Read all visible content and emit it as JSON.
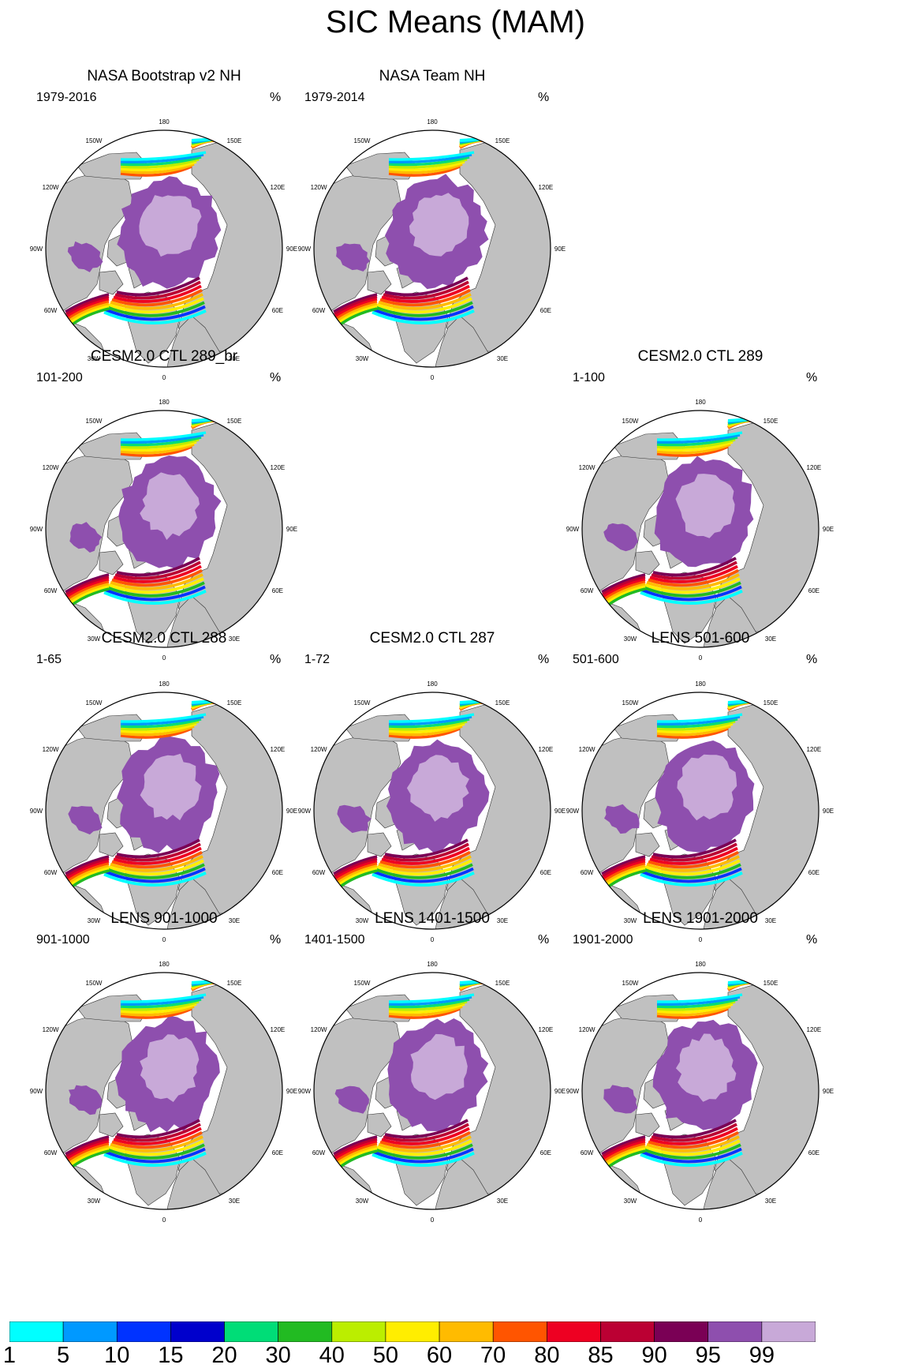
{
  "title": "SIC Means (MAM)",
  "colors": {
    "land": "#c0c0c0",
    "ocean": "#ffffff",
    "coast": "#333333"
  },
  "map_labels": {
    "lon_180": "180",
    "lon_150w": "150W",
    "lon_150e": "150E",
    "lon_120w": "120W",
    "lon_120e": "120E",
    "lon_90w": "90W",
    "lon_90e": "90E",
    "lon_60w": "60W",
    "lon_60e": "60E",
    "lon_30w": "30W",
    "lon_30e": "30E",
    "lon_0": "0"
  },
  "panels": [
    {
      "id": "bootstrap",
      "title": "NASA Bootstrap v2 NH",
      "left": "1979-2016",
      "right": "%",
      "visible": true
    },
    {
      "id": "nasateam",
      "title": "NASA Team NH",
      "left": "1979-2014",
      "right": "%",
      "visible": true
    },
    {
      "id": "empty",
      "visible": false
    },
    {
      "id": "ctl289br",
      "title": "CESM2.0 CTL 289_br",
      "left": "101-200",
      "right": "%",
      "visible": true
    },
    {
      "id": "empty2",
      "visible": false
    },
    {
      "id": "ctl289",
      "title": "CESM2.0 CTL 289",
      "left": "1-100",
      "right": "%",
      "visible": true
    },
    {
      "id": "ctl288",
      "title": "CESM2.0 CTL 288",
      "left": "1-65",
      "right": "%",
      "visible": true
    },
    {
      "id": "ctl287",
      "title": "CESM2.0 CTL 287",
      "left": "1-72",
      "right": "%",
      "visible": true
    },
    {
      "id": "lens501",
      "title": "LENS 501-600",
      "left": "501-600",
      "right": "%",
      "visible": true
    },
    {
      "id": "lens901",
      "title": "LENS 901-1000",
      "left": "901-1000",
      "right": "%",
      "visible": true
    },
    {
      "id": "lens1401",
      "title": "LENS 1401-1500",
      "left": "1401-1500",
      "right": "%",
      "visible": true
    },
    {
      "id": "lens1901",
      "title": "LENS 1901-2000",
      "left": "1901-2000",
      "right": "%",
      "visible": true
    }
  ],
  "colorbar": {
    "labels": [
      "1",
      "5",
      "10",
      "15",
      "20",
      "30",
      "40",
      "50",
      "60",
      "70",
      "80",
      "85",
      "90",
      "95",
      "99"
    ],
    "colors": [
      "#00ffff",
      "#0099ff",
      "#0033ff",
      "#0000cc",
      "#00dd77",
      "#22bb22",
      "#bbee00",
      "#ffee00",
      "#ffbb00",
      "#ff5500",
      "#ee0022",
      "#bb0033",
      "#7a0055",
      "#8e4fae",
      "#c8a9d8"
    ]
  }
}
